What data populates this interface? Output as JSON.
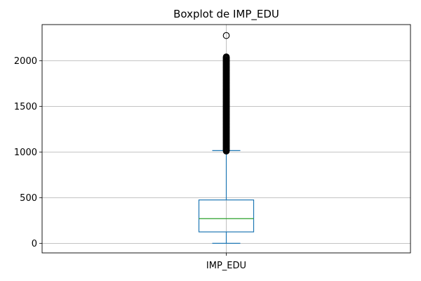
{
  "chart_data": {
    "type": "boxplot",
    "title": "Boxplot de IMP_EDU",
    "xlabel": "",
    "ylabel": "",
    "categories": [
      "IMP_EDU"
    ],
    "ylim": [
      -105,
      2395
    ],
    "yticks": [
      0,
      500,
      1000,
      1500,
      2000
    ],
    "grid": true,
    "series": [
      {
        "whisker_low": 0,
        "q1": 125,
        "median": 270,
        "q3": 475,
        "whisker_high": 1015,
        "outliers_dense_range": [
          1010,
          2045
        ],
        "outliers": [
          2275
        ]
      }
    ],
    "colors": {
      "box": "#1f77b4",
      "median": "#2ca02c",
      "grid": "#b0b0b0",
      "outlier_edge": "#000000"
    }
  }
}
